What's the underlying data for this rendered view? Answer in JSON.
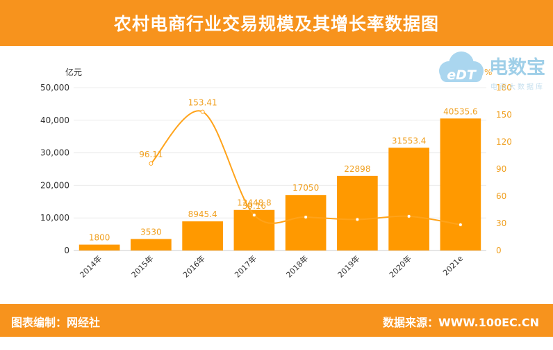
{
  "header": {
    "title": "农村电商行业交易规模及其增长率数据图"
  },
  "footer": {
    "left": "图表编制：网经社",
    "right": "数据来源：WWW.100EC.CN"
  },
  "logo": {
    "brand": "电数宝",
    "mark": "eDT",
    "sub": "电商大数据库"
  },
  "colors": {
    "accent": "#f7931d",
    "bar": "#ff9900",
    "line": "#ffa31a",
    "label": "#f0a020"
  },
  "chart_data": {
    "type": "bar",
    "categories": [
      "2014年",
      "2015年",
      "2016年",
      "2017年",
      "2018年",
      "2019年",
      "2020年",
      "2021e"
    ],
    "series": [
      {
        "values": [
          1800,
          3530,
          8945.4,
          12448.8,
          17050,
          22898,
          31553.4,
          40535.6
        ],
        "value_labels": [
          "1800",
          "3530",
          "8945.4",
          "12448.8",
          "17050",
          "22898",
          "31553.4",
          "40535.6"
        ]
      },
      {
        "type": "line",
        "axis": "right",
        "values": [
          null,
          96.11,
          153.41,
          39.16,
          36.96,
          34.3,
          37.8,
          28.47
        ],
        "value_labels": [
          "",
          "96.11",
          "153.41",
          "39.16",
          "",
          "",
          "",
          ""
        ]
      }
    ],
    "ylabel": "亿元",
    "y2label": "%",
    "ylim": [
      0,
      50000
    ],
    "y2lim": [
      0,
      180
    ],
    "yticks": [
      "0",
      "10,000",
      "20,000",
      "30,000",
      "40,000",
      "50,000"
    ],
    "y2ticks": [
      "0",
      "30",
      "60",
      "90",
      "120",
      "150",
      "180"
    ]
  }
}
